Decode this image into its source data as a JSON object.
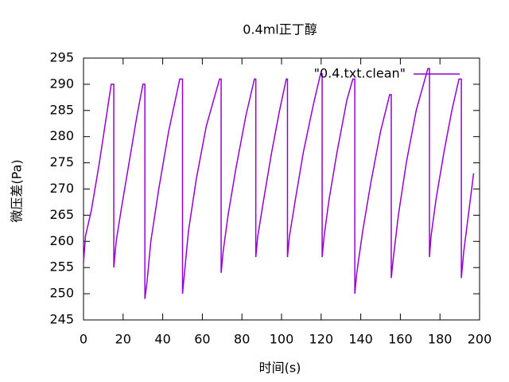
{
  "chart_data": {
    "type": "line",
    "title": "0.4ml正丁醇",
    "xlabel": "时间(s)",
    "ylabel": "微压差(Pa)",
    "x": [
      0,
      1,
      4,
      8,
      12,
      14,
      15.3,
      15.3,
      16.5,
      19,
      23,
      27,
      30,
      31,
      31,
      32,
      34,
      38,
      43,
      48.6,
      50,
      50,
      51,
      53,
      57,
      62,
      68.7,
      69.5,
      69.5,
      70.5,
      73,
      77,
      82,
      86.3,
      87,
      87,
      88,
      91,
      95,
      99,
      102.4,
      103,
      103,
      104,
      107,
      111,
      116,
      119.7,
      120.5,
      120.5,
      121.5,
      124,
      128,
      133,
      136,
      137,
      137,
      138,
      141,
      145,
      150,
      154.6,
      155.4,
      155.4,
      156.5,
      159,
      163,
      168,
      173.9,
      174.7,
      174.7,
      175.5,
      178,
      182,
      186,
      189.6,
      190.8,
      190.8,
      192,
      194,
      196,
      197
    ],
    "series": [
      {
        "name": "\"0.4.txt.clean\"",
        "color": "#9400d3",
        "values": [
          256,
          261,
          266,
          275,
          285,
          290,
          290,
          255,
          260,
          266,
          275,
          284,
          290,
          290,
          249,
          252,
          260,
          270,
          281,
          291,
          291,
          250,
          254,
          262,
          272,
          282,
          291,
          291,
          254,
          258,
          265,
          274,
          284,
          291,
          291,
          257,
          261,
          268,
          277,
          285,
          291,
          291,
          257,
          261,
          268,
          277,
          286,
          292,
          292,
          257,
          261,
          268,
          277,
          287,
          291,
          291,
          250,
          254,
          262,
          271,
          281,
          288,
          288,
          253,
          257,
          265,
          275,
          285,
          293,
          293,
          257,
          261,
          268,
          277,
          285,
          291,
          291,
          253,
          258,
          264,
          270,
          273
        ]
      }
    ],
    "xlim": [
      0,
      200
    ],
    "ylim": [
      245,
      295
    ],
    "xticks": [
      0,
      20,
      40,
      60,
      80,
      100,
      120,
      140,
      160,
      180,
      200
    ],
    "yticks": [
      245,
      250,
      255,
      260,
      265,
      270,
      275,
      280,
      285,
      290,
      295
    ],
    "legend": "top right"
  }
}
